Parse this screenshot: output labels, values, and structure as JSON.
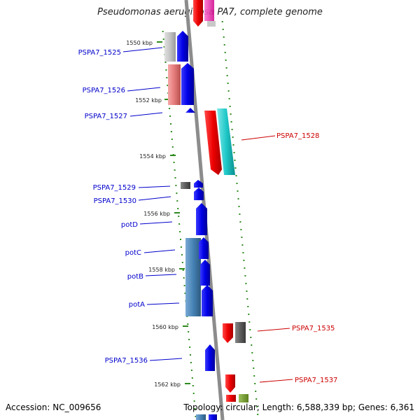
{
  "title": "Pseudomonas aeruginosa PA7, complete genome",
  "footer": {
    "accession": "Accession: NC_009656",
    "summary": "Topology: circular; Length: 6,588,339 bp; Genes: 6,361"
  },
  "colors": {
    "backbone": "#8c8c8c",
    "tick": "#2e8b1f",
    "left_label": "#0000cc",
    "right_label": "#cc0000"
  },
  "scale_labels": [
    "1550 kbp",
    "1552 kbp",
    "1554 kbp",
    "1556 kbp",
    "1558 kbp",
    "1560 kbp",
    "1562 kbp"
  ],
  "genes_left": [
    {
      "name": "PSPA7_1525",
      "color": "#0000dd"
    },
    {
      "name": "PSPA7_1526",
      "color": "#0000dd"
    },
    {
      "name": "PSPA7_1527",
      "color": "#0000dd"
    },
    {
      "name": "PSPA7_1529",
      "color": "#0000dd"
    },
    {
      "name": "PSPA7_1530",
      "color": "#0000dd"
    },
    {
      "name": "potD",
      "color": "#0000dd"
    },
    {
      "name": "potC",
      "color": "#0000dd"
    },
    {
      "name": "potB",
      "color": "#0000dd"
    },
    {
      "name": "potA",
      "color": "#0000dd"
    },
    {
      "name": "PSPA7_1536",
      "color": "#0000dd"
    }
  ],
  "genes_right": [
    {
      "name": "PSPA7_1528",
      "color": "#ee0000"
    },
    {
      "name": "PSPA7_1535",
      "color": "#ee0000"
    },
    {
      "name": "PSPA7_1537",
      "color": "#ee0000"
    }
  ]
}
